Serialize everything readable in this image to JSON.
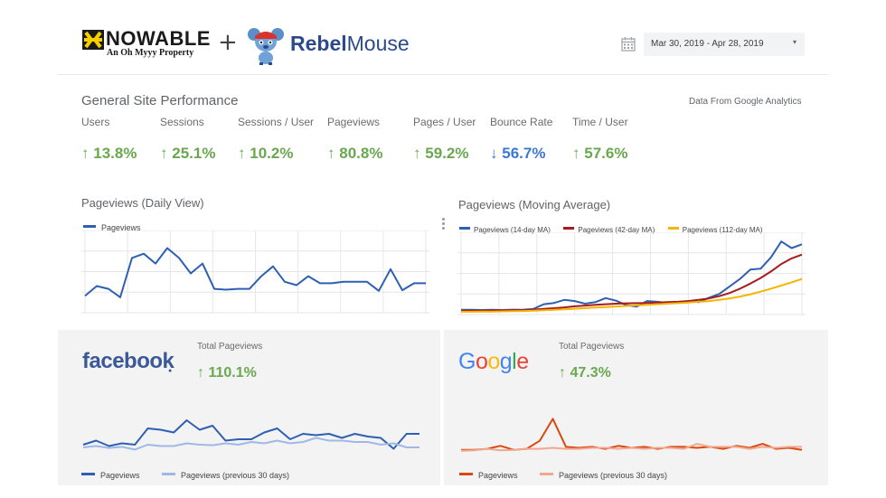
{
  "header": {
    "knowable_wordmark": "NOWABLE",
    "knowable_tagline": "An Oh Myyy Property",
    "plus": "+",
    "rebel_part": "Rebel",
    "mouse_part": "Mouse",
    "date_range": "Mar 30, 2019 - Apr 28, 2019"
  },
  "performance": {
    "title": "General Site Performance",
    "source": "Data From Google Analytics",
    "metrics": [
      {
        "label": "Users",
        "value": "13.8%",
        "dir": "up"
      },
      {
        "label": "Sessions",
        "value": "25.1%",
        "dir": "up"
      },
      {
        "label": "Sessions / User",
        "value": "10.2%",
        "dir": "up"
      },
      {
        "label": "Pageviews",
        "value": "80.8%",
        "dir": "up"
      },
      {
        "label": "Pages / User",
        "value": "59.2%",
        "dir": "up"
      },
      {
        "label": "Bounce Rate",
        "value": "56.7%",
        "dir": "down"
      },
      {
        "label": "Time / User",
        "value": "57.6%",
        "dir": "up"
      }
    ],
    "arrows": {
      "up": "↑",
      "down": "↓"
    }
  },
  "colors": {
    "up": "#6aa84f",
    "down": "#3d78d8",
    "blue": "#2f5fb3",
    "light_blue": "#9fb8e4",
    "dark_red": "#a61c1c",
    "yellow": "#f4b400",
    "orange": "#d9480f",
    "peach": "#f2a88f"
  },
  "chart_data": [
    {
      "type": "line",
      "title": "Pageviews (Daily View)",
      "series": [
        {
          "name": "Pageviews",
          "values": [
            0.6,
            0.95,
            0.85,
            0.55,
            1.95,
            2.1,
            1.75,
            2.3,
            1.95,
            1.4,
            1.75,
            0.85,
            0.82,
            0.85,
            0.85,
            1.3,
            1.65,
            1.1,
            0.98,
            1.3,
            1.05,
            1.05,
            1.1,
            1.1,
            1.1,
            0.78,
            1.55,
            0.8,
            1.05,
            1.05
          ]
        }
      ]
    },
    {
      "type": "line",
      "title": "Pageviews (Moving Average)",
      "series": [
        {
          "name": "Pageviews (14-day MA)",
          "values": [
            0.25,
            0.25,
            0.24,
            0.25,
            0.24,
            0.26,
            0.25,
            0.3,
            0.55,
            0.62,
            0.78,
            0.72,
            0.58,
            0.66,
            0.88,
            0.74,
            0.5,
            0.42,
            0.72,
            0.68,
            0.62,
            0.66,
            0.72,
            0.66,
            0.9,
            1.1,
            1.5,
            1.9,
            2.4,
            2.45,
            3.05,
            3.9,
            3.55,
            3.75
          ]
        },
        {
          "name": "Pageviews (42-day MA)",
          "values": [
            0.2,
            0.21,
            0.21,
            0.22,
            0.22,
            0.23,
            0.24,
            0.26,
            0.3,
            0.34,
            0.38,
            0.44,
            0.48,
            0.52,
            0.55,
            0.58,
            0.6,
            0.61,
            0.62,
            0.64,
            0.66,
            0.68,
            0.72,
            0.78,
            0.86,
            0.98,
            1.15,
            1.38,
            1.65,
            1.95,
            2.3,
            2.7,
            3.0,
            3.2
          ]
        },
        {
          "name": "Pageviews (112-day MA)",
          "values": [
            0.15,
            0.15,
            0.16,
            0.16,
            0.17,
            0.18,
            0.19,
            0.21,
            0.23,
            0.25,
            0.28,
            0.31,
            0.34,
            0.37,
            0.4,
            0.43,
            0.46,
            0.49,
            0.52,
            0.55,
            0.58,
            0.61,
            0.64,
            0.68,
            0.72,
            0.78,
            0.86,
            0.96,
            1.08,
            1.22,
            1.38,
            1.55,
            1.72,
            1.9
          ]
        }
      ]
    },
    {
      "type": "line",
      "title": "Facebook Pageviews",
      "series": [
        {
          "name": "Pageviews",
          "values": [
            0.3,
            0.45,
            0.25,
            0.35,
            0.3,
            0.9,
            0.85,
            0.75,
            1.2,
            0.85,
            1.0,
            0.45,
            0.5,
            0.5,
            0.75,
            0.9,
            0.5,
            0.7,
            0.65,
            0.7,
            0.55,
            0.7,
            0.6,
            0.55,
            0.15,
            0.7,
            0.7
          ]
        },
        {
          "name": "Pageviews (previous 30 days)",
          "values": [
            0.2,
            0.25,
            0.18,
            0.22,
            0.12,
            0.3,
            0.25,
            0.25,
            0.35,
            0.3,
            0.28,
            0.35,
            0.3,
            0.4,
            0.35,
            0.45,
            0.35,
            0.4,
            0.55,
            0.45,
            0.45,
            0.4,
            0.4,
            0.3,
            0.35,
            0.2,
            0.2
          ]
        }
      ]
    },
    {
      "type": "line",
      "title": "Google Pageviews",
      "series": [
        {
          "name": "Pageviews",
          "values": [
            0.15,
            0.15,
            0.2,
            0.35,
            0.15,
            0.2,
            0.6,
            1.7,
            0.3,
            0.25,
            0.3,
            0.2,
            0.35,
            0.25,
            0.3,
            0.2,
            0.3,
            0.3,
            0.25,
            0.3,
            0.2,
            0.35,
            0.25,
            0.45,
            0.2,
            0.25,
            0.15
          ]
        },
        {
          "name": "Pageviews (previous 30 days)",
          "values": [
            0.1,
            0.12,
            0.2,
            0.12,
            0.15,
            0.2,
            0.2,
            0.25,
            0.2,
            0.2,
            0.25,
            0.25,
            0.2,
            0.25,
            0.2,
            0.25,
            0.25,
            0.2,
            0.45,
            0.3,
            0.3,
            0.3,
            0.2,
            0.3,
            0.25,
            0.3,
            0.3
          ]
        }
      ]
    }
  ],
  "facebook": {
    "logo": "facebook",
    "total_label": "Total Pageviews",
    "total_value": "110.1%",
    "legend": [
      "Pageviews",
      "Pageviews (previous 30 days)"
    ]
  },
  "google": {
    "logo_letters": [
      "G",
      "o",
      "o",
      "g",
      "l",
      "e"
    ],
    "total_label": "Total Pageviews",
    "total_value": "47.3%",
    "legend": [
      "Pageviews",
      "Pageviews (previous 30 days)"
    ]
  }
}
